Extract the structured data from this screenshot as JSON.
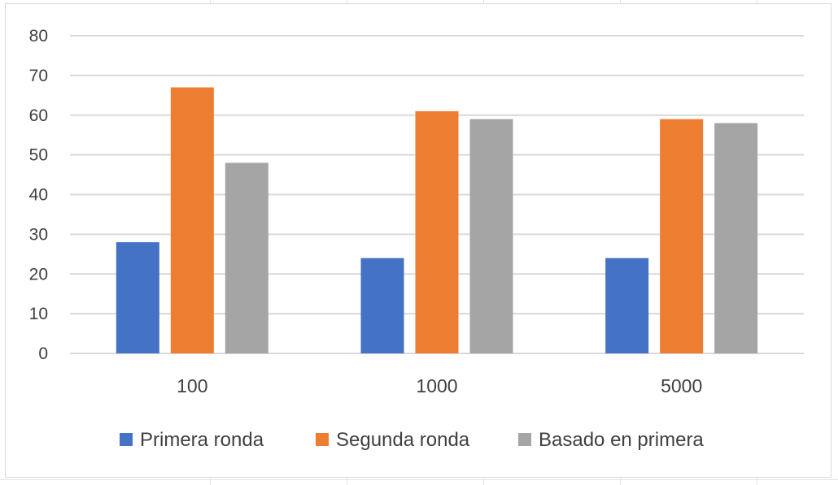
{
  "chart_data": {
    "type": "bar",
    "title": "",
    "xlabel": "",
    "ylabel": "",
    "categories": [
      "100",
      "1000",
      "5000"
    ],
    "series": [
      {
        "name": "Primera ronda",
        "color": "#4472C4",
        "values": [
          28,
          24,
          24
        ]
      },
      {
        "name": "Segunda ronda",
        "color": "#ED7D31",
        "values": [
          67,
          61,
          59
        ]
      },
      {
        "name": "Basado en primera",
        "color": "#A5A5A5",
        "values": [
          48,
          59,
          58
        ]
      }
    ],
    "ylim": [
      0,
      80
    ],
    "yticks": [
      0,
      10,
      20,
      30,
      40,
      50,
      60,
      70,
      80
    ],
    "grid": true,
    "gridline_color": "#D9D9D9",
    "legend": "bottom"
  }
}
